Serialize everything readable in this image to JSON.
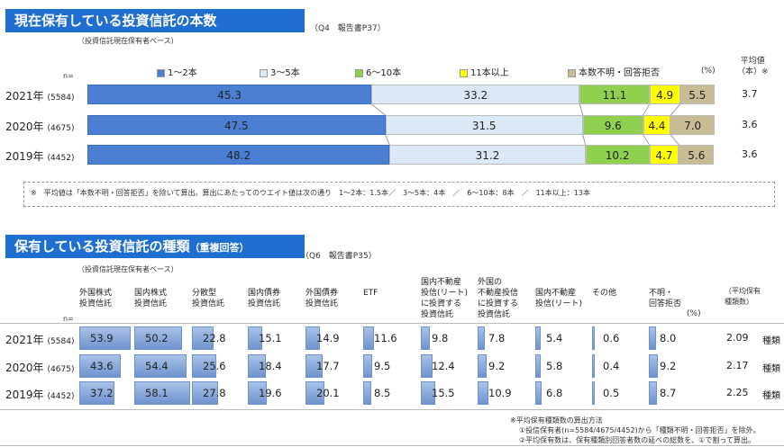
{
  "section1": {
    "title": "現在保有している投資信託の本数",
    "ref": "（Q4　報告書P37）",
    "base": "（投資信託現在保有者ベース）",
    "n_label": "n=",
    "pct_label": "(%)",
    "avg_header": [
      "平均値",
      "（本）※"
    ]
  },
  "section2": {
    "title_main": "保有している投資信託の種類",
    "title_sub": "（重複回答）",
    "ref": "（Q6　報告書P35）",
    "base": "（投資信託現在保有者ベース）",
    "n_label": "n=",
    "pct_label": "(%)",
    "avg_header": [
      "（平均保有",
      "種類数）"
    ],
    "unit": "種類",
    "footnote_title": "※平均保有種類数の算出方法",
    "footnote_lines": [
      "①投信保有者(n=5584/4675/4452)から「種類不明・回答拒否」を除外。",
      "②平均保有数は、保有種類別回答者数の延べの総数を、①で割って算出。"
    ]
  },
  "note1": "※　平均値は「本数不明・回答拒否」を除いて算出。算出にあたってのウエイト値は次の通り　1～2本：1.5本／　3～5本：4本　／　6～10本：8本　／　11本以上：13本",
  "colors": {
    "title_bg": "#1f6fd0",
    "s1": "#4a7fd4",
    "s2": "#dbe8f5",
    "s3": "#8fd14f",
    "s4": "#ffff00",
    "s5": "#c8bc94"
  },
  "chart_data": [
    {
      "type": "bar",
      "stacked": true,
      "orientation": "horizontal",
      "categories": [
        "2021年",
        "2020年",
        "2019年"
      ],
      "n": [
        "(5584)",
        "(4675)",
        "(4452)"
      ],
      "series": [
        {
          "name": "1～2本",
          "values": [
            45.3,
            47.5,
            48.2
          ]
        },
        {
          "name": "3～5本",
          "values": [
            33.2,
            31.5,
            31.2
          ]
        },
        {
          "name": "6～10本",
          "values": [
            11.1,
            9.6,
            10.2
          ]
        },
        {
          "name": "11本以上",
          "values": [
            4.9,
            4.4,
            4.7
          ]
        },
        {
          "name": "本数不明・回答拒否",
          "values": [
            5.5,
            7.0,
            5.6
          ]
        }
      ],
      "averages": [
        "3.7",
        "3.6",
        "3.6"
      ]
    },
    {
      "type": "table",
      "columns": [
        [
          "外国株式",
          "投資信託"
        ],
        [
          "国内株式",
          "投資信託"
        ],
        [
          "分散型",
          "投資信託"
        ],
        [
          "国内債券",
          "投資信託"
        ],
        [
          "外国債券",
          "投資信託"
        ],
        [
          "ETF"
        ],
        [
          "国内不動産",
          "投信(リート)",
          "に投資する",
          "投資信託"
        ],
        [
          "外国の",
          "不動産投信",
          "に投資する",
          "投資信託"
        ],
        [
          "国内不動産",
          "投信(リート)"
        ],
        [
          "その他"
        ],
        [
          "不明・",
          "回答拒否"
        ]
      ],
      "rows": [
        {
          "year": "2021年",
          "n": "(5584)",
          "values": [
            53.9,
            50.2,
            22.8,
            15.1,
            14.9,
            11.6,
            9.8,
            7.8,
            5.4,
            0.6,
            8.0
          ],
          "avg": "2.09"
        },
        {
          "year": "2020年",
          "n": "(4675)",
          "values": [
            43.6,
            54.4,
            25.6,
            18.4,
            17.7,
            9.5,
            12.4,
            9.2,
            5.8,
            0.4,
            9.2
          ],
          "avg": "2.17"
        },
        {
          "year": "2019年",
          "n": "(4452)",
          "values": [
            37.2,
            58.1,
            27.8,
            19.6,
            20.1,
            8.5,
            15.5,
            10.9,
            6.8,
            0.5,
            8.7
          ],
          "avg": "2.25"
        }
      ]
    }
  ]
}
